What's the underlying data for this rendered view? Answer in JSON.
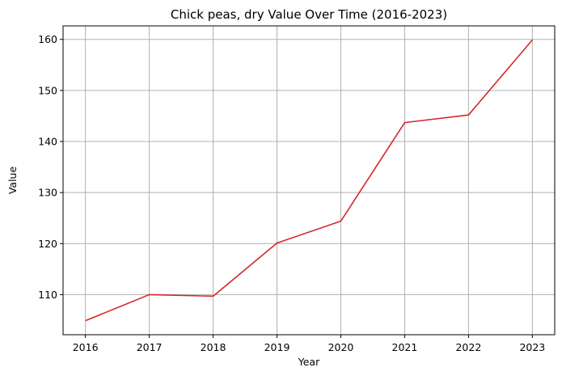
{
  "chart_data": {
    "type": "line",
    "title": "Chick peas, dry Value Over Time (2016-2023)",
    "xlabel": "Year",
    "ylabel": "Value",
    "x": [
      2016,
      2017,
      2018,
      2019,
      2020,
      2021,
      2022,
      2023
    ],
    "series": [
      {
        "values": [
          104.9,
          110.0,
          109.7,
          120.1,
          124.4,
          143.7,
          145.2,
          159.9
        ]
      }
    ],
    "x_ticks": [
      "2016",
      "2017",
      "2018",
      "2019",
      "2020",
      "2021",
      "2022",
      "2023"
    ],
    "y_ticks": [
      "110",
      "120",
      "130",
      "140",
      "150",
      "160"
    ],
    "xlim": [
      2015.65,
      2023.35
    ],
    "ylim": [
      102.15,
      162.65
    ],
    "grid": true,
    "line_color": "#d62728"
  }
}
